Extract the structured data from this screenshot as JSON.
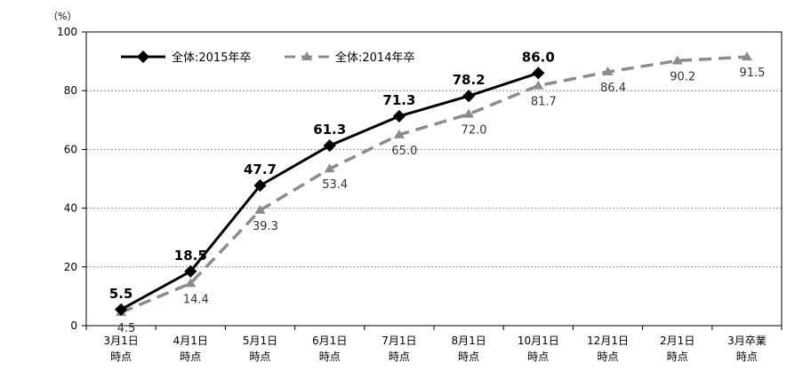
{
  "chart_data": {
    "type": "line",
    "title": "",
    "xlabel": "",
    "ylabel": "（%）",
    "ylim": [
      0,
      100
    ],
    "yticks": [
      0,
      20,
      40,
      60,
      80,
      100
    ],
    "grid": true,
    "legend_position": "top-left",
    "categories": [
      [
        "3月1日",
        "時点"
      ],
      [
        "4月1日",
        "時点"
      ],
      [
        "5月1日",
        "時点"
      ],
      [
        "6月1日",
        "時点"
      ],
      [
        "7月1日",
        "時点"
      ],
      [
        "8月1日",
        "時点"
      ],
      [
        "10月1日",
        "時点"
      ],
      [
        "12月1日",
        "時点"
      ],
      [
        "2月1日",
        "時点"
      ],
      [
        "3月卒業",
        "時点"
      ]
    ],
    "series": [
      {
        "name": "全体:2015年卒",
        "style": "solid",
        "marker": "diamond",
        "color": "#000000",
        "values": [
          5.5,
          18.5,
          47.7,
          61.3,
          71.3,
          78.2,
          86.0,
          null,
          null,
          null
        ],
        "labels": [
          "5.5",
          "18.5",
          "47.7",
          "61.3",
          "71.3",
          "78.2",
          "86.0",
          null,
          null,
          null
        ]
      },
      {
        "name": "全体:2014年卒",
        "style": "dashed",
        "marker": "triangle",
        "color": "#8c8c8c",
        "values": [
          4.5,
          14.4,
          39.3,
          53.4,
          65.0,
          72.0,
          81.7,
          86.4,
          90.2,
          91.5
        ],
        "labels": [
          "4.5",
          "14.4",
          "39.3",
          "53.4",
          "65.0",
          "72.0",
          "81.7",
          "86.4",
          "90.2",
          "91.5"
        ]
      }
    ]
  }
}
